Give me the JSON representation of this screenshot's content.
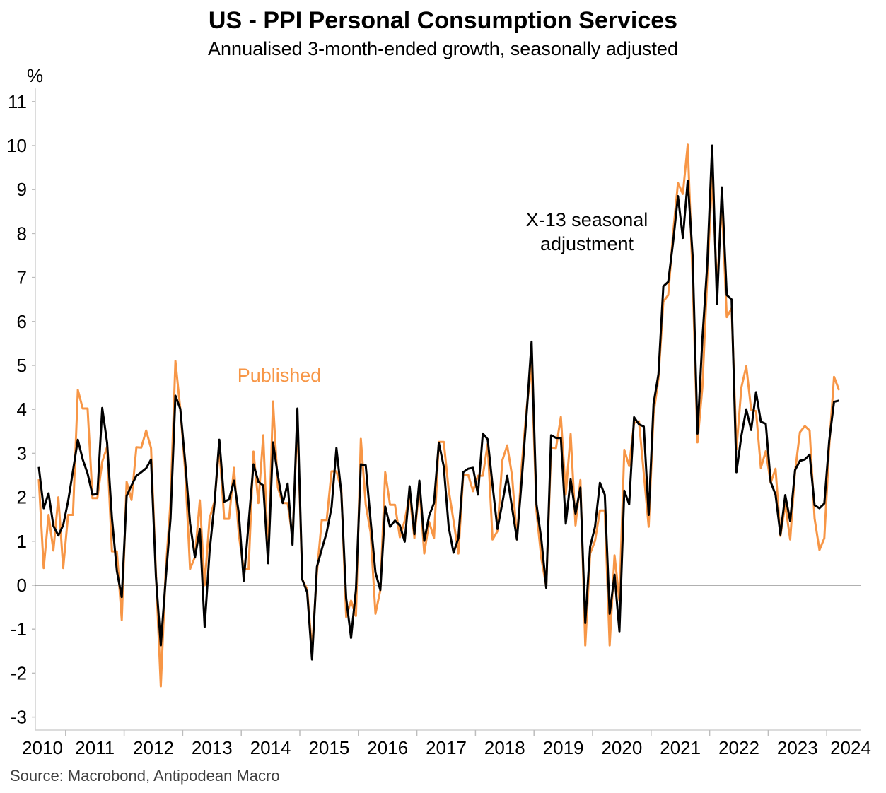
{
  "title": "US - PPI Personal Consumption Services",
  "subtitle": "Annualised 3-month-ended growth, seasonally adjusted",
  "source": "Source: Macrobond, Antipodean Macro",
  "chart_data": {
    "type": "line",
    "title": "US - PPI Personal Consumption Services",
    "subtitle": "Annualised 3-month-ended growth, seasonally adjusted",
    "ylabel": "%",
    "xlabel": "",
    "ylim": [
      -3.3,
      11.3
    ],
    "yticks": [
      -3,
      -2,
      -1,
      0,
      1,
      2,
      3,
      4,
      5,
      6,
      7,
      8,
      9,
      10,
      11
    ],
    "xticks": [
      "2010",
      "2011",
      "2012",
      "2013",
      "2014",
      "2015",
      "2016",
      "2017",
      "2018",
      "2019",
      "2020",
      "2021",
      "2022",
      "2023",
      "2024"
    ],
    "frequency": "monthly",
    "start": "2010-07",
    "end": "2024-03",
    "grid": false,
    "zero_line": true,
    "annotations": [
      {
        "text_lines": [
          "X-13 seasonal",
          "adjustment"
        ],
        "series": "X-13 seasonal adjustment"
      },
      {
        "text_lines": [
          "Published"
        ],
        "series": "Published"
      }
    ],
    "series": [
      {
        "name": "Published",
        "color": "#F79646",
        "values": [
          2.41,
          0.39,
          1.6,
          0.79,
          2.0,
          0.39,
          1.6,
          1.6,
          4.44,
          4.02,
          4.02,
          1.98,
          1.98,
          2.81,
          3.15,
          0.77,
          0.77,
          -0.79,
          2.35,
          1.94,
          3.14,
          3.13,
          3.52,
          3.12,
          0.3,
          -2.3,
          0.3,
          1.9,
          5.1,
          4.0,
          2.6,
          0.37,
          0.64,
          1.93,
          0.0,
          1.52,
          1.9,
          3.13,
          1.51,
          1.51,
          2.67,
          1.14,
          0.37,
          0.37,
          3.04,
          1.87,
          3.41,
          0.61,
          4.18,
          2.22,
          1.87,
          1.87,
          1.09,
          3.71,
          0.13,
          -0.09,
          -1.48,
          0.29,
          1.48,
          1.48,
          2.59,
          2.59,
          2.19,
          -0.72,
          -0.35,
          -0.7,
          3.33,
          1.84,
          1.2,
          -0.65,
          -0.11,
          2.57,
          1.83,
          1.83,
          1.09,
          1.47,
          2.06,
          1.07,
          2.27,
          0.72,
          1.44,
          1.07,
          3.26,
          3.26,
          2.17,
          1.47,
          0.72,
          2.51,
          2.51,
          2.14,
          2.49,
          2.49,
          3.21,
          1.04,
          1.23,
          2.84,
          3.18,
          2.49,
          1.04,
          2.75,
          4.04,
          5.0,
          1.68,
          0.61,
          -0.03,
          3.13,
          3.12,
          3.83,
          2.06,
          3.44,
          1.36,
          2.39,
          -1.37,
          0.72,
          1.01,
          1.7,
          1.7,
          -1.37,
          0.68,
          -0.35,
          3.08,
          2.71,
          3.69,
          3.73,
          2.54,
          1.33,
          3.9,
          4.7,
          6.45,
          6.6,
          8.0,
          9.15,
          8.9,
          10.02,
          7.0,
          3.25,
          4.5,
          7.0,
          9.3,
          6.8,
          8.7,
          6.1,
          6.3,
          3.1,
          4.5,
          4.98,
          3.99,
          3.96,
          2.67,
          3.05,
          2.33,
          2.65,
          1.12,
          1.84,
          1.04,
          2.59,
          3.48,
          3.62,
          3.52,
          1.52,
          0.8,
          1.07,
          3.16,
          4.74,
          4.44
        ]
      },
      {
        "name": "X-13 seasonal adjustment",
        "color": "#000000",
        "values": [
          2.69,
          1.75,
          2.09,
          1.35,
          1.13,
          1.37,
          1.91,
          2.6,
          3.31,
          2.86,
          2.54,
          2.06,
          2.07,
          4.03,
          3.24,
          1.53,
          0.32,
          -0.27,
          2.03,
          2.27,
          2.49,
          2.57,
          2.66,
          2.86,
          0.2,
          -1.37,
          0.13,
          1.52,
          4.31,
          4.01,
          2.8,
          1.41,
          0.63,
          1.28,
          -0.95,
          0.77,
          1.85,
          3.31,
          1.9,
          1.95,
          2.38,
          1.63,
          0.1,
          1.41,
          2.75,
          2.35,
          2.27,
          0.5,
          3.25,
          2.49,
          1.87,
          2.31,
          0.92,
          4.02,
          0.13,
          -0.16,
          -1.69,
          0.42,
          0.82,
          1.2,
          1.77,
          3.12,
          2.1,
          -0.3,
          -1.2,
          -0.1,
          2.75,
          2.73,
          1.47,
          0.29,
          -0.11,
          1.79,
          1.33,
          1.47,
          1.36,
          0.99,
          2.25,
          1.16,
          2.38,
          1.01,
          1.58,
          1.87,
          3.24,
          2.7,
          1.33,
          0.74,
          1.07,
          2.57,
          2.65,
          2.67,
          2.06,
          3.45,
          3.32,
          2.27,
          1.28,
          1.87,
          2.49,
          1.76,
          1.04,
          2.43,
          3.93,
          5.54,
          1.84,
          1.04,
          -0.06,
          3.41,
          3.35,
          3.35,
          1.4,
          2.41,
          1.63,
          2.22,
          -0.86,
          0.88,
          1.33,
          2.33,
          2.06,
          -0.65,
          0.24,
          -1.05,
          2.15,
          1.84,
          3.82,
          3.66,
          3.61,
          1.6,
          4.13,
          4.8,
          6.8,
          6.9,
          7.8,
          8.85,
          7.9,
          9.2,
          7.5,
          3.45,
          5.6,
          7.3,
          10.0,
          6.4,
          9.05,
          6.6,
          6.5,
          2.57,
          3.4,
          4.0,
          3.53,
          4.39,
          3.72,
          3.67,
          2.35,
          2.06,
          1.15,
          2.05,
          1.46,
          2.62,
          2.83,
          2.86,
          2.97,
          1.82,
          1.75,
          1.86,
          3.29,
          4.17,
          4.2
        ]
      }
    ]
  }
}
